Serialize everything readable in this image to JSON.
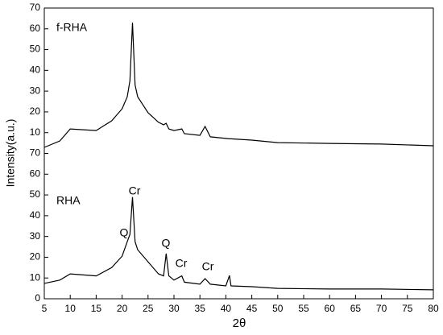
{
  "chart_data": {
    "type": "line",
    "x_label": "2θ",
    "y_label": "Intensity(a.u.)",
    "x": [
      5,
      8,
      10,
      15,
      18,
      20,
      21,
      21.5,
      22,
      22.5,
      23,
      25,
      27,
      28,
      28.5,
      29,
      30,
      31.5,
      32,
      35,
      36,
      37,
      40,
      40.7,
      41,
      45,
      50,
      60,
      70,
      80
    ],
    "series": [
      {
        "name": "f-RHA",
        "color": "#000000",
        "values": [
          72.9,
          76,
          81.8,
          81,
          85.7,
          91.5,
          97.3,
          105,
          133,
          103,
          97.3,
          89.6,
          85,
          83.8,
          84.5,
          81.8,
          81,
          81.8,
          79.5,
          78.7,
          83,
          78,
          77.2,
          77,
          77,
          76.4,
          75.2,
          74.8,
          74.5,
          73.7
        ]
      },
      {
        "name": "RHA",
        "color": "#000000",
        "values": [
          7.4,
          9,
          12,
          11,
          15,
          20.5,
          27.5,
          31,
          49,
          27.5,
          23.6,
          17.8,
          12,
          11,
          21.7,
          11,
          9,
          11,
          8,
          7,
          9.7,
          7,
          6.2,
          11.2,
          6.2,
          5.8,
          5,
          4.7,
          4.7,
          4.3
        ]
      }
    ],
    "annotations": [
      "Cr",
      "Q",
      "Q",
      "Cr",
      "Cr"
    ],
    "xlim": [
      5,
      80
    ],
    "xticks": [
      5,
      10,
      15,
      20,
      25,
      30,
      35,
      40,
      45,
      50,
      55,
      60,
      65,
      70,
      75,
      80
    ],
    "ylim": [
      0,
      140
    ],
    "yticks": [
      0,
      10,
      20,
      30,
      40,
      50,
      60,
      70,
      {
        "value": 80,
        "label": "10"
      },
      {
        "value": 90,
        "label": "20"
      },
      {
        "value": 100,
        "label": "30"
      },
      {
        "value": 110,
        "label": "40"
      },
      {
        "value": 120,
        "label": "50"
      },
      {
        "value": 130,
        "label": "60"
      },
      {
        "value": 140,
        "label": "70"
      }
    ],
    "grid": false
  }
}
